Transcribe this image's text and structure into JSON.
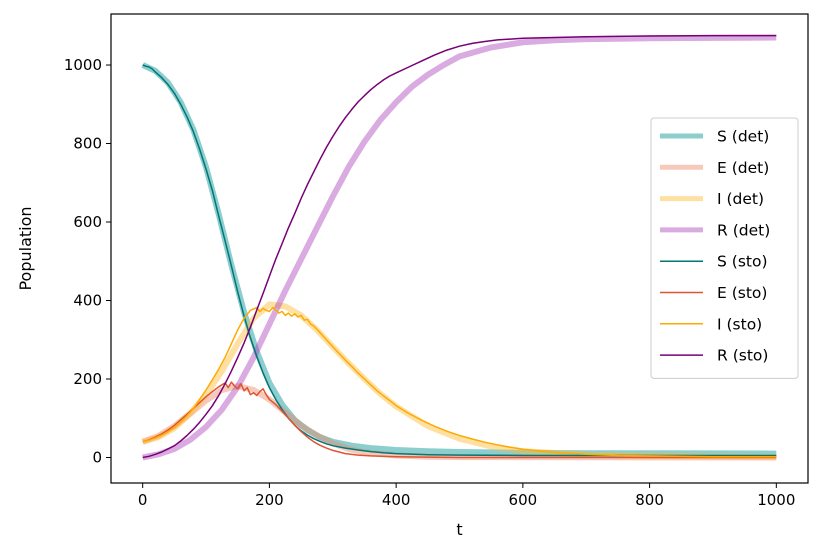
{
  "chart_data": {
    "type": "line",
    "title": "",
    "xlabel": "t",
    "ylabel": "Population",
    "xlim": [
      -50,
      1050
    ],
    "ylim": [
      -65,
      1130
    ],
    "xticks": [
      0,
      200,
      400,
      600,
      800,
      1000
    ],
    "yticks": [
      0,
      200,
      400,
      600,
      800,
      1000
    ],
    "grid": false,
    "legend_position": "center-right",
    "series": [
      {
        "name": "S (det)",
        "color": "#009090",
        "style": "det",
        "points": [
          [
            0,
            1000
          ],
          [
            20,
            985
          ],
          [
            40,
            955
          ],
          [
            60,
            905
          ],
          [
            80,
            835
          ],
          [
            100,
            740
          ],
          [
            120,
            620
          ],
          [
            140,
            490
          ],
          [
            160,
            370
          ],
          [
            180,
            270
          ],
          [
            200,
            190
          ],
          [
            220,
            135
          ],
          [
            240,
            95
          ],
          [
            260,
            70
          ],
          [
            280,
            52
          ],
          [
            300,
            40
          ],
          [
            330,
            30
          ],
          [
            360,
            24
          ],
          [
            400,
            19
          ],
          [
            450,
            16
          ],
          [
            500,
            14
          ],
          [
            600,
            12
          ],
          [
            700,
            11
          ],
          [
            800,
            11
          ],
          [
            1000,
            10
          ]
        ]
      },
      {
        "name": "E (det)",
        "color": "#ee8866",
        "style": "det",
        "points": [
          [
            0,
            40
          ],
          [
            25,
            55
          ],
          [
            50,
            80
          ],
          [
            75,
            112
          ],
          [
            100,
            145
          ],
          [
            125,
            172
          ],
          [
            150,
            182
          ],
          [
            175,
            172
          ],
          [
            200,
            148
          ],
          [
            225,
            115
          ],
          [
            250,
            82
          ],
          [
            275,
            56
          ],
          [
            300,
            36
          ],
          [
            325,
            22
          ],
          [
            350,
            13
          ],
          [
            400,
            5
          ],
          [
            450,
            2
          ],
          [
            500,
            1
          ],
          [
            1000,
            0
          ]
        ]
      },
      {
        "name": "I (det)",
        "color": "#ffbb33",
        "style": "det",
        "points": [
          [
            0,
            40
          ],
          [
            25,
            52
          ],
          [
            50,
            75
          ],
          [
            75,
            112
          ],
          [
            100,
            160
          ],
          [
            125,
            220
          ],
          [
            150,
            290
          ],
          [
            175,
            355
          ],
          [
            200,
            390
          ],
          [
            225,
            385
          ],
          [
            250,
            362
          ],
          [
            275,
            325
          ],
          [
            300,
            282
          ],
          [
            325,
            240
          ],
          [
            350,
            200
          ],
          [
            375,
            162
          ],
          [
            400,
            130
          ],
          [
            450,
            80
          ],
          [
            500,
            48
          ],
          [
            550,
            28
          ],
          [
            600,
            16
          ],
          [
            700,
            7
          ],
          [
            800,
            4
          ],
          [
            1000,
            2
          ]
        ]
      },
      {
        "name": "R (det)",
        "color": "#aa44bb",
        "style": "det",
        "points": [
          [
            0,
            0
          ],
          [
            25,
            8
          ],
          [
            50,
            22
          ],
          [
            75,
            45
          ],
          [
            100,
            78
          ],
          [
            125,
            122
          ],
          [
            150,
            180
          ],
          [
            175,
            255
          ],
          [
            200,
            340
          ],
          [
            225,
            425
          ],
          [
            250,
            505
          ],
          [
            275,
            585
          ],
          [
            300,
            665
          ],
          [
            325,
            740
          ],
          [
            350,
            805
          ],
          [
            375,
            860
          ],
          [
            400,
            905
          ],
          [
            425,
            945
          ],
          [
            450,
            975
          ],
          [
            475,
            1000
          ],
          [
            500,
            1022
          ],
          [
            550,
            1045
          ],
          [
            600,
            1058
          ],
          [
            650,
            1063
          ],
          [
            700,
            1066
          ],
          [
            800,
            1068
          ],
          [
            900,
            1069
          ],
          [
            1000,
            1070
          ]
        ]
      },
      {
        "name": "S (sto)",
        "color": "#007777",
        "style": "sto",
        "points": [
          [
            0,
            1000
          ],
          [
            5,
            997
          ],
          [
            10,
            995
          ],
          [
            15,
            990
          ],
          [
            20,
            982
          ],
          [
            30,
            968
          ],
          [
            40,
            950
          ],
          [
            50,
            928
          ],
          [
            60,
            900
          ],
          [
            70,
            868
          ],
          [
            80,
            830
          ],
          [
            90,
            785
          ],
          [
            100,
            735
          ],
          [
            110,
            680
          ],
          [
            120,
            615
          ],
          [
            130,
            552
          ],
          [
            140,
            488
          ],
          [
            150,
            422
          ],
          [
            160,
            360
          ],
          [
            170,
            305
          ],
          [
            180,
            258
          ],
          [
            190,
            215
          ],
          [
            200,
            178
          ],
          [
            210,
            148
          ],
          [
            220,
            122
          ],
          [
            230,
            100
          ],
          [
            240,
            82
          ],
          [
            250,
            68
          ],
          [
            260,
            57
          ],
          [
            270,
            48
          ],
          [
            280,
            41
          ],
          [
            290,
            35
          ],
          [
            300,
            30
          ],
          [
            320,
            24
          ],
          [
            340,
            19
          ],
          [
            360,
            15
          ],
          [
            380,
            12
          ],
          [
            400,
            10
          ],
          [
            450,
            7
          ],
          [
            500,
            6
          ],
          [
            600,
            5
          ],
          [
            700,
            5
          ],
          [
            800,
            5
          ],
          [
            1000,
            5
          ]
        ]
      },
      {
        "name": "E (sto)",
        "color": "#dd5533",
        "style": "sto",
        "points": [
          [
            0,
            40
          ],
          [
            10,
            45
          ],
          [
            20,
            52
          ],
          [
            30,
            60
          ],
          [
            40,
            70
          ],
          [
            50,
            82
          ],
          [
            60,
            96
          ],
          [
            70,
            110
          ],
          [
            80,
            125
          ],
          [
            90,
            140
          ],
          [
            100,
            155
          ],
          [
            110,
            168
          ],
          [
            120,
            180
          ],
          [
            130,
            190
          ],
          [
            135,
            178
          ],
          [
            140,
            192
          ],
          [
            145,
            182
          ],
          [
            150,
            175
          ],
          [
            155,
            188
          ],
          [
            160,
            170
          ],
          [
            165,
            178
          ],
          [
            170,
            160
          ],
          [
            175,
            165
          ],
          [
            180,
            158
          ],
          [
            185,
            168
          ],
          [
            190,
            175
          ],
          [
            195,
            160
          ],
          [
            200,
            148
          ],
          [
            210,
            135
          ],
          [
            220,
            118
          ],
          [
            230,
            100
          ],
          [
            240,
            82
          ],
          [
            250,
            66
          ],
          [
            260,
            52
          ],
          [
            270,
            40
          ],
          [
            280,
            31
          ],
          [
            290,
            24
          ],
          [
            300,
            18
          ],
          [
            320,
            10
          ],
          [
            340,
            6
          ],
          [
            360,
            4
          ],
          [
            400,
            2
          ],
          [
            450,
            1
          ],
          [
            500,
            0
          ],
          [
            1000,
            0
          ]
        ]
      },
      {
        "name": "I (sto)",
        "color": "#ffaa00",
        "style": "sto",
        "points": [
          [
            0,
            40
          ],
          [
            10,
            44
          ],
          [
            20,
            50
          ],
          [
            30,
            57
          ],
          [
            40,
            66
          ],
          [
            50,
            76
          ],
          [
            60,
            90
          ],
          [
            70,
            106
          ],
          [
            80,
            125
          ],
          [
            90,
            148
          ],
          [
            100,
            172
          ],
          [
            110,
            198
          ],
          [
            120,
            225
          ],
          [
            130,
            255
          ],
          [
            140,
            290
          ],
          [
            150,
            325
          ],
          [
            160,
            355
          ],
          [
            170,
            375
          ],
          [
            180,
            382
          ],
          [
            185,
            372
          ],
          [
            190,
            380
          ],
          [
            195,
            375
          ],
          [
            200,
            372
          ],
          [
            205,
            382
          ],
          [
            210,
            376
          ],
          [
            215,
            368
          ],
          [
            220,
            372
          ],
          [
            225,
            362
          ],
          [
            230,
            368
          ],
          [
            235,
            360
          ],
          [
            240,
            366
          ],
          [
            245,
            358
          ],
          [
            250,
            362
          ],
          [
            255,
            350
          ],
          [
            260,
            352
          ],
          [
            265,
            340
          ],
          [
            270,
            335
          ],
          [
            280,
            318
          ],
          [
            290,
            300
          ],
          [
            300,
            282
          ],
          [
            310,
            265
          ],
          [
            320,
            248
          ],
          [
            330,
            232
          ],
          [
            340,
            215
          ],
          [
            350,
            200
          ],
          [
            360,
            185
          ],
          [
            370,
            170
          ],
          [
            380,
            157
          ],
          [
            390,
            145
          ],
          [
            400,
            132
          ],
          [
            420,
            112
          ],
          [
            440,
            95
          ],
          [
            460,
            80
          ],
          [
            480,
            67
          ],
          [
            500,
            56
          ],
          [
            520,
            47
          ],
          [
            540,
            39
          ],
          [
            560,
            32
          ],
          [
            580,
            26
          ],
          [
            600,
            21
          ],
          [
            650,
            13
          ],
          [
            700,
            8
          ],
          [
            750,
            5
          ],
          [
            800,
            4
          ],
          [
            900,
            2
          ],
          [
            1000,
            2
          ]
        ]
      },
      {
        "name": "R (sto)",
        "color": "#770077",
        "style": "sto",
        "points": [
          [
            0,
            0
          ],
          [
            10,
            3
          ],
          [
            20,
            8
          ],
          [
            30,
            14
          ],
          [
            40,
            22
          ],
          [
            50,
            30
          ],
          [
            60,
            42
          ],
          [
            70,
            56
          ],
          [
            80,
            72
          ],
          [
            90,
            90
          ],
          [
            100,
            110
          ],
          [
            110,
            132
          ],
          [
            120,
            158
          ],
          [
            130,
            188
          ],
          [
            140,
            220
          ],
          [
            150,
            255
          ],
          [
            160,
            292
          ],
          [
            170,
            332
          ],
          [
            180,
            375
          ],
          [
            190,
            418
          ],
          [
            200,
            462
          ],
          [
            210,
            505
          ],
          [
            220,
            545
          ],
          [
            230,
            585
          ],
          [
            240,
            622
          ],
          [
            250,
            660
          ],
          [
            260,
            695
          ],
          [
            270,
            728
          ],
          [
            280,
            760
          ],
          [
            290,
            790
          ],
          [
            300,
            818
          ],
          [
            310,
            843
          ],
          [
            320,
            866
          ],
          [
            330,
            887
          ],
          [
            340,
            906
          ],
          [
            350,
            922
          ],
          [
            360,
            937
          ],
          [
            370,
            950
          ],
          [
            380,
            962
          ],
          [
            390,
            972
          ],
          [
            400,
            980
          ],
          [
            420,
            995
          ],
          [
            440,
            1010
          ],
          [
            460,
            1025
          ],
          [
            480,
            1038
          ],
          [
            500,
            1048
          ],
          [
            520,
            1055
          ],
          [
            540,
            1060
          ],
          [
            560,
            1064
          ],
          [
            580,
            1066
          ],
          [
            600,
            1068
          ],
          [
            650,
            1070
          ],
          [
            700,
            1072
          ],
          [
            800,
            1074
          ],
          [
            900,
            1075
          ],
          [
            1000,
            1075
          ]
        ]
      }
    ]
  }
}
